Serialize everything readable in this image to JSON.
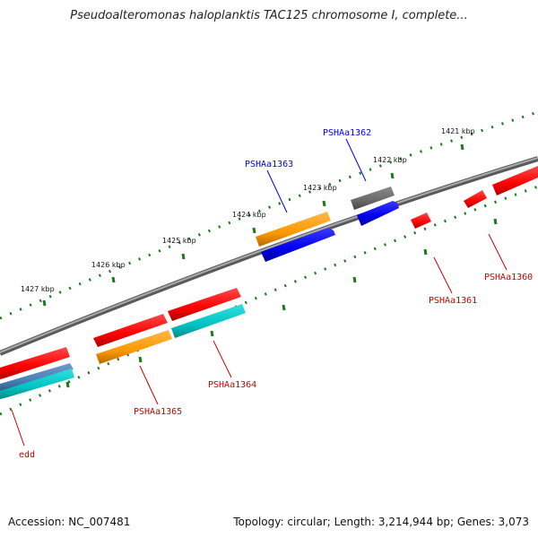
{
  "header": {
    "title": "Pseudoalteromonas haloplanktis TAC125 chromosome I, complete..."
  },
  "footer": {
    "accession": "Accession: NC_007481",
    "topology": "Topology: circular; Length: 3,214,944 bp; Genes: 3,073"
  },
  "ruler": {
    "tick_labels": [
      "1421 kbp",
      "1422 kbp",
      "1423 kbp",
      "1424 kbp",
      "1425 kbp",
      "1426 kbp",
      "1427 kbp"
    ]
  },
  "genes": {
    "forward": [
      {
        "label": "PSHAa1363",
        "color": "#0000ee"
      },
      {
        "label": "PSHAa1362",
        "color": "#0000ee"
      }
    ],
    "reverse": [
      {
        "label": "PSHAa1361",
        "color": "#cc0000"
      },
      {
        "label": "PSHAa1360",
        "color": "#cc0000"
      },
      {
        "label": "PSHAa1364",
        "color": "#cc0000"
      },
      {
        "label": "PSHAa1365",
        "color": "#cc0000"
      },
      {
        "label": "edd",
        "color": "#cc0000"
      }
    ]
  },
  "colors": {
    "backbone": "#8a8a8a",
    "ruler_dash": "#1a7a1a",
    "feature_red": "#ff0000",
    "feature_orange": "#ff9900",
    "feature_blue": "#0000ee",
    "feature_cyan": "#00cccc",
    "feature_gray": "#666666",
    "feature_steel": "#4a7fb5"
  }
}
